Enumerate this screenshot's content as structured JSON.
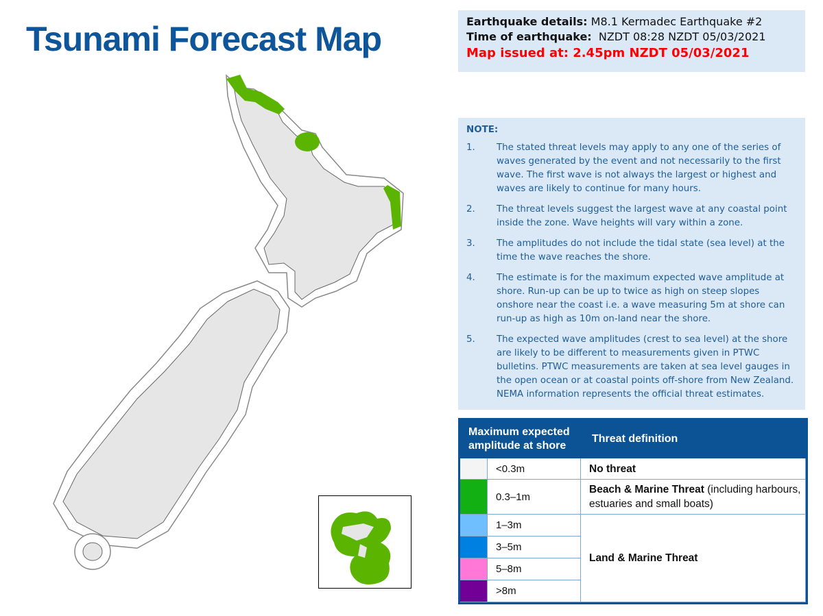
{
  "title": "Tsunami Forecast Map",
  "info": {
    "eq_label": "Earthquake details:",
    "eq_value": "M8.1 Kermadec Earthquake #2",
    "time_label": "Time of earthquake:",
    "time_value": "NZDT 08:28 NZDT 05/03/2021",
    "issued": "Map issued at: 2.45pm NZDT 05/03/2021"
  },
  "note": {
    "heading": "NOTE:",
    "items": [
      {
        "n": "1.",
        "text": "The stated threat levels may apply to any one of the series of waves generated by the event and not necessarily to the first wave. The first wave is not always the largest or highest and waves are likely to continue for many hours."
      },
      {
        "n": "2.",
        "text": "The threat levels suggest the largest wave at any coastal point inside the zone. Wave heights will vary within a zone."
      },
      {
        "n": "3.",
        "text": "The amplitudes do not include the tidal state (sea level) at the time the wave reaches the shore."
      },
      {
        "n": "4.",
        "text": "The estimate is for the maximum expected wave amplitude at shore. Run-up can be up to twice as high on steep slopes onshore near the coast i.e. a wave measuring 5m at shore can run-up as high as 10m on-land near the shore."
      },
      {
        "n": "5.",
        "text": "The expected wave amplitudes (crest to sea level) at the shore are likely to be different to measurements given in PTWC bulletins. PTWC measurements are taken at sea level gauges in the open ocean or at coastal points off-shore from New Zealand. NEMA information represents the official threat estimates."
      }
    ]
  },
  "legend": {
    "col1": "Maximum expected amplitude at shore",
    "col2": "Threat definition",
    "rows": [
      {
        "range": "<0.3m",
        "color": "#f4f4f4"
      },
      {
        "range": "0.3–1m",
        "color": "#12b012"
      },
      {
        "range": "1–3m",
        "color": "#6fbfff"
      },
      {
        "range": "3–5m",
        "color": "#0080e0"
      },
      {
        "range": "5–8m",
        "color": "#ff78d8"
      },
      {
        "range": ">8m",
        "color": "#720096"
      }
    ],
    "defs": {
      "none": "No threat",
      "beach_bold": "Beach & Marine Threat",
      "beach_rest": " (including harbours, estuaries and small boats)",
      "land": "Land & Marine Threat"
    }
  },
  "colors": {
    "zone_green": "#5bb400",
    "land": "#e6e6e6"
  }
}
